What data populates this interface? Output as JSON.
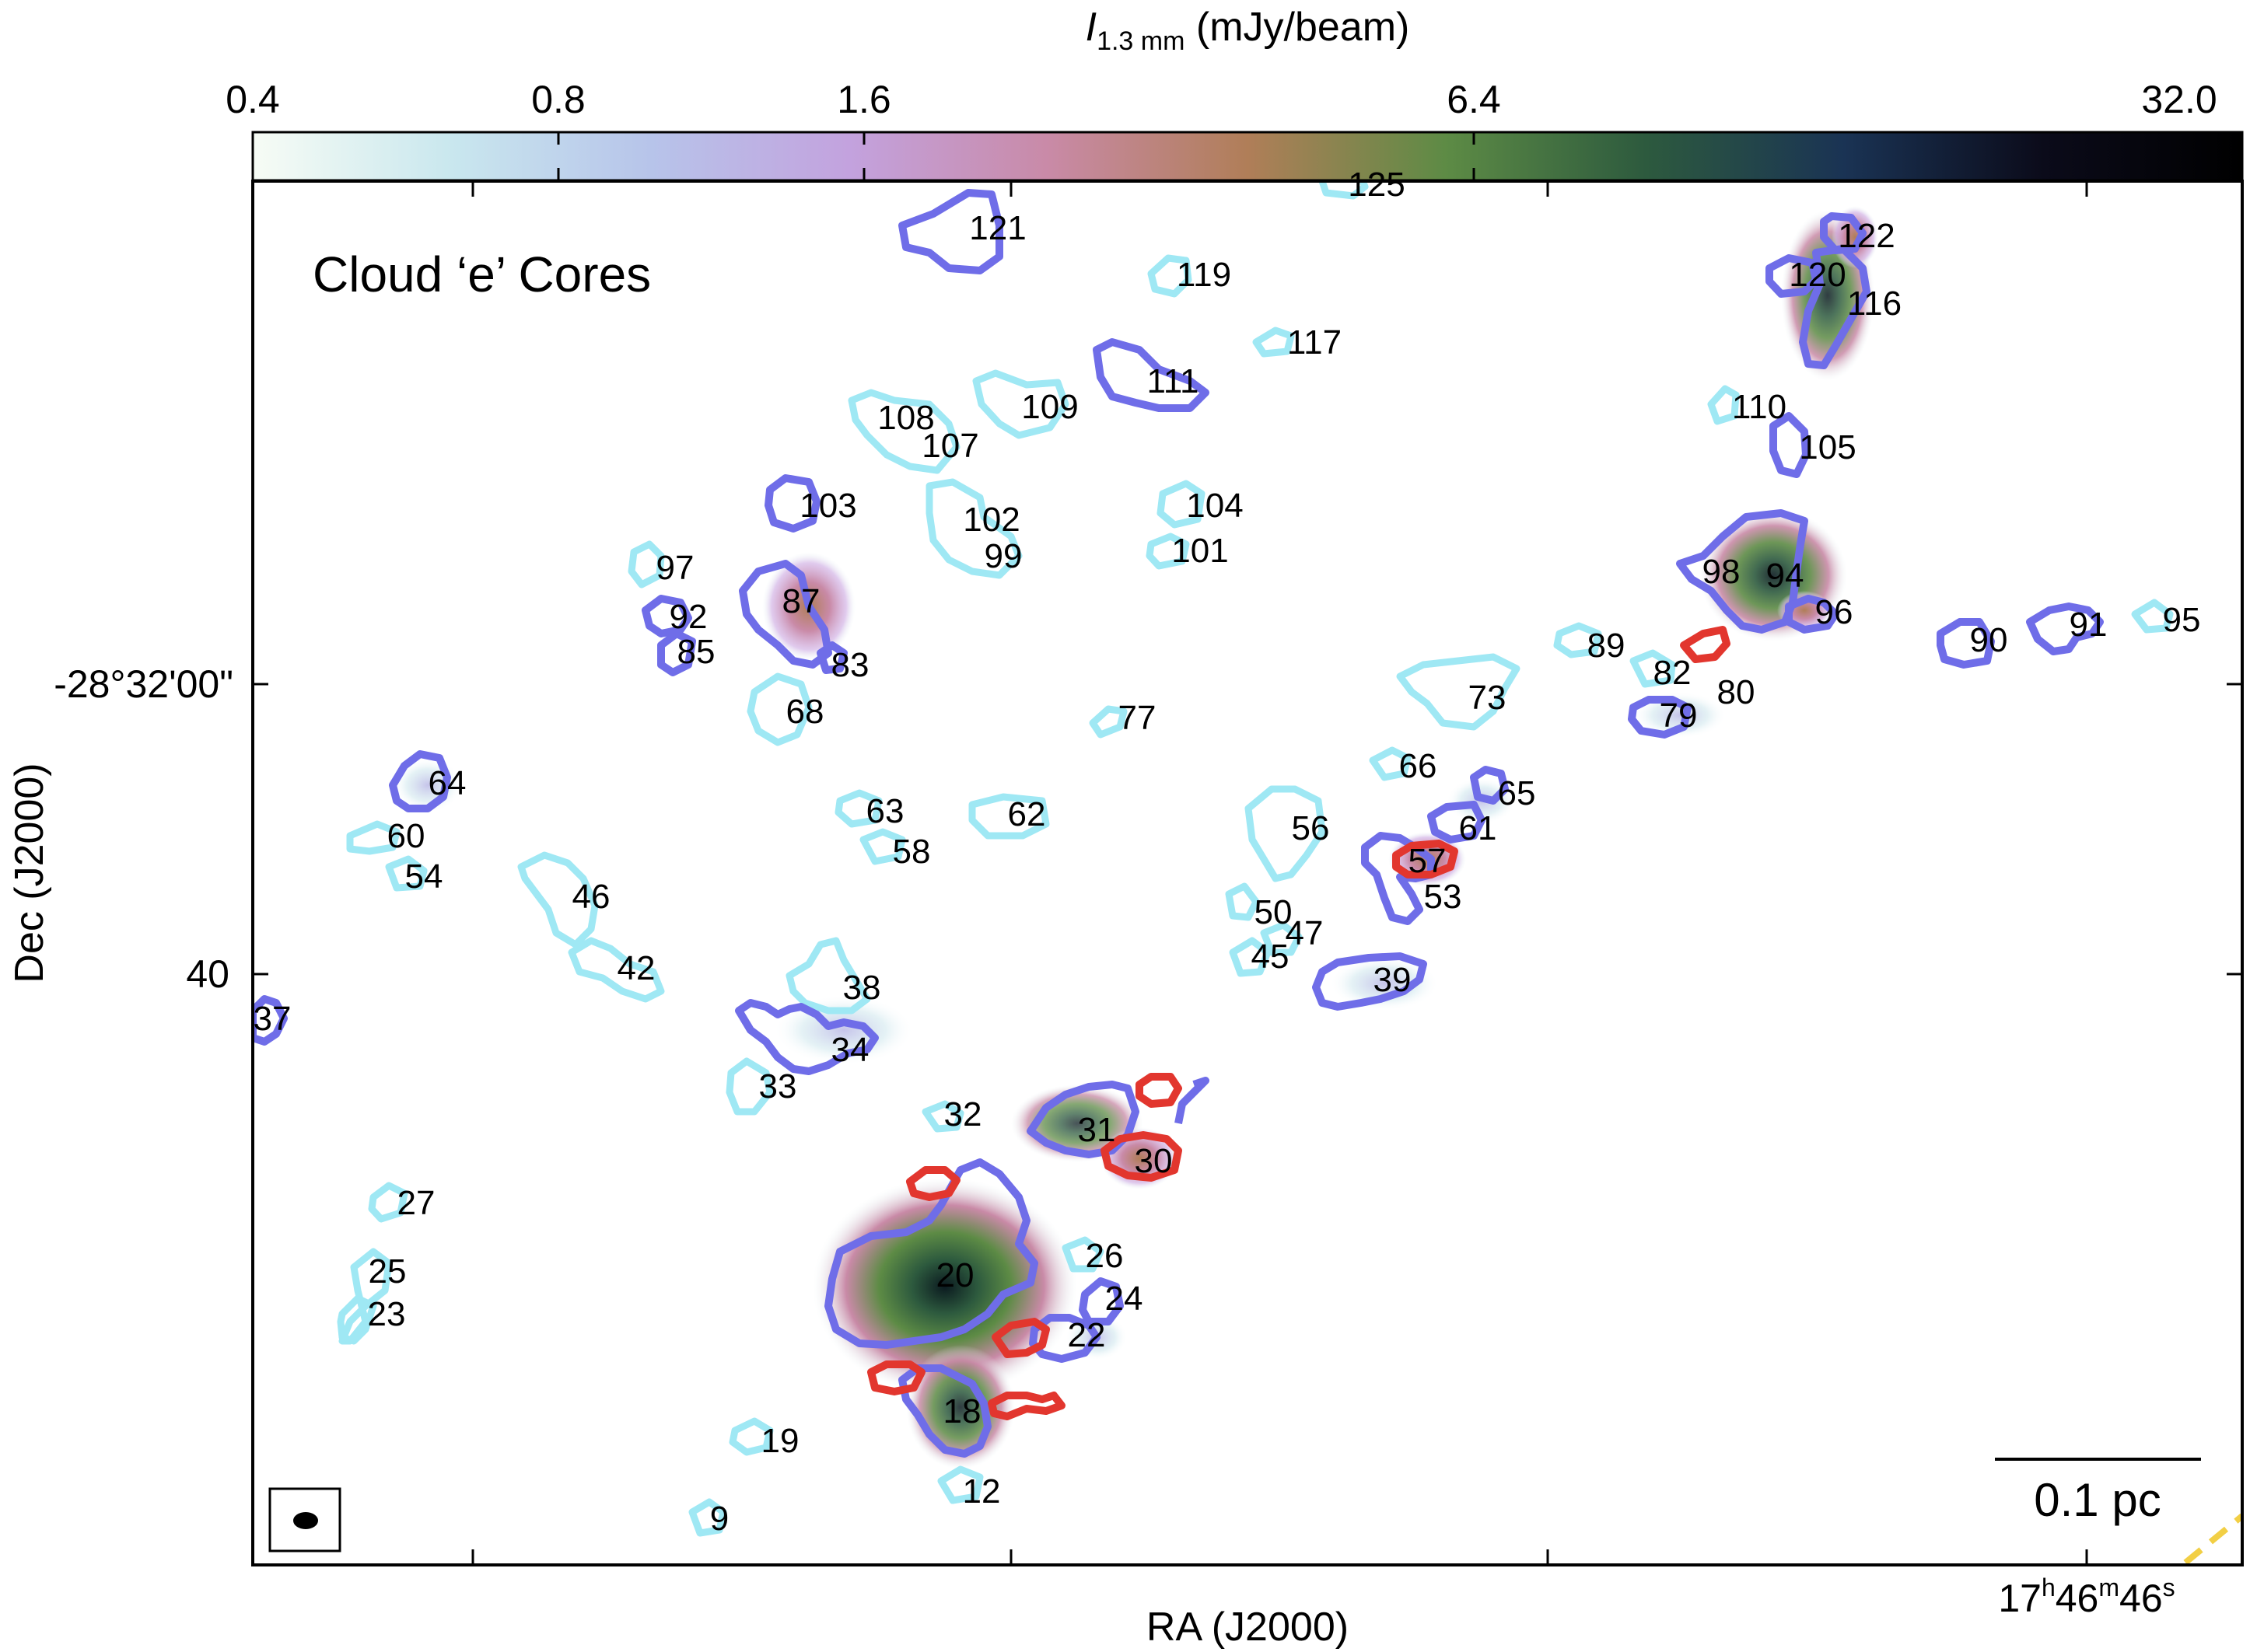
{
  "colorbar": {
    "title_main": "I",
    "title_sub": "1.3 mm",
    "title_unit": " (mJy/beam)",
    "ticks": [
      "0.4",
      "0.8",
      "1.6",
      "6.4",
      "32.0"
    ],
    "stops": [
      "#f7fcf5",
      "#c9e7ee",
      "#b7c4ea",
      "#c3a2de",
      "#c98aa7",
      "#b07e58",
      "#5d8b45",
      "#2d5a3e",
      "#1a3354",
      "#0b0b1a",
      "#000000"
    ]
  },
  "panel_title": "Cloud ‘e’ Cores",
  "axes": {
    "xlabel": "RA (J2000)",
    "ylabel": "Dec (J2000)",
    "ra_tick_h": "17",
    "ra_tick_h_unit": "h",
    "ra_tick_m": "46",
    "ra_tick_m_unit": "m",
    "ra_tick_s": "46",
    "ra_tick_s_unit": "s",
    "dec_ticks": [
      "-28°32'00\"",
      "40"
    ]
  },
  "scalebar": {
    "label": "0.1 pc"
  },
  "cores": {
    "cyan": [
      "125",
      "119",
      "117",
      "110",
      "108",
      "107",
      "109",
      "104",
      "102",
      "101",
      "99",
      "97",
      "89",
      "82",
      "73",
      "77",
      "68",
      "66",
      "63",
      "62",
      "58",
      "56",
      "50",
      "47",
      "45",
      "60",
      "54",
      "46",
      "42",
      "38",
      "33",
      "32",
      "27",
      "26",
      "25",
      "23",
      "19",
      "12",
      "9",
      "95"
    ],
    "blue": [
      "121",
      "122",
      "120",
      "116",
      "111",
      "105",
      "103",
      "98",
      "94",
      "96",
      "90",
      "91",
      "87",
      "92",
      "85",
      "83",
      "79",
      "80",
      "65",
      "61",
      "57",
      "53",
      "64",
      "39",
      "34",
      "37",
      "31",
      "30",
      "20",
      "24",
      "22",
      "18"
    ],
    "red": [
      "80",
      "57",
      "31",
      "30",
      "20",
      "22",
      "18"
    ]
  },
  "core_labels": {
    "c125": "125",
    "c121": "121",
    "c122": "122",
    "c120": "120",
    "c116": "116",
    "c119": "119",
    "c117": "117",
    "c111": "111",
    "c110": "110",
    "c109": "109",
    "c108": "108",
    "c107": "107",
    "c105": "105",
    "c104": "104",
    "c103": "103",
    "c102": "102",
    "c101": "101",
    "c99": "99",
    "c98": "98",
    "c97": "97",
    "c96": "96",
    "c95": "95",
    "c94": "94",
    "c92": "92",
    "c91": "91",
    "c90": "90",
    "c89": "89",
    "c87": "87",
    "c85": "85",
    "c83": "83",
    "c82": "82",
    "c80": "80",
    "c79": "79",
    "c77": "77",
    "c73": "73",
    "c68": "68",
    "c66": "66",
    "c65": "65",
    "c64": "64",
    "c63": "63",
    "c62": "62",
    "c61": "61",
    "c60": "60",
    "c58": "58",
    "c57": "57",
    "c56": "56",
    "c54": "54",
    "c53": "53",
    "c50": "50",
    "c47": "47",
    "c46": "46",
    "c45": "45",
    "c42": "42",
    "c39": "39",
    "c38": "38",
    "c37": "37",
    "c34": "34",
    "c33": "33",
    "c32": "32",
    "c31": "31",
    "c30": "30",
    "c27": "27",
    "c26": "26",
    "c25": "25",
    "c24": "24",
    "c23": "23",
    "c22": "22",
    "c20": "20",
    "c19": "19",
    "c18": "18",
    "c12": "12",
    "c9": "9"
  },
  "colors": {
    "cyan_contour": "#9fe8f4",
    "blue_contour": "#6f6de8",
    "red_contour": "#e2362e",
    "beam": "#000000",
    "dashed_line": "#f2cf45"
  }
}
